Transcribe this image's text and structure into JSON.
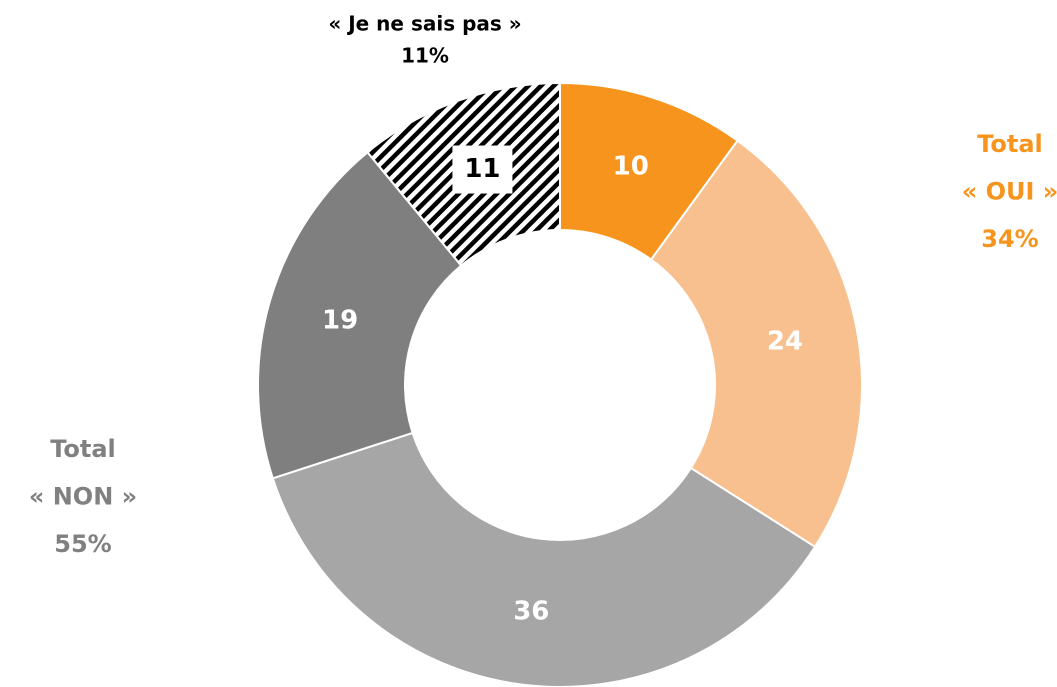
{
  "chart_data": {
    "type": "donut",
    "values": [
      10,
      24,
      36,
      19,
      11
    ],
    "colors": [
      "#f7941d",
      "#f9c08f",
      "#a6a6a6",
      "#7f7f7f",
      "#000000"
    ],
    "patterns": [
      null,
      null,
      null,
      null,
      "diagonal-stripes"
    ],
    "annotations": [
      {
        "lines": [
          "Total",
          "« OUI »",
          "34%"
        ],
        "color": "#f7941d"
      },
      {
        "lines": [
          "Total",
          "« NON »",
          "55%"
        ],
        "color": "#808080"
      },
      {
        "lines": [
          "« Je ne sais pas »",
          "11%"
        ],
        "color": "#000000"
      }
    ]
  }
}
